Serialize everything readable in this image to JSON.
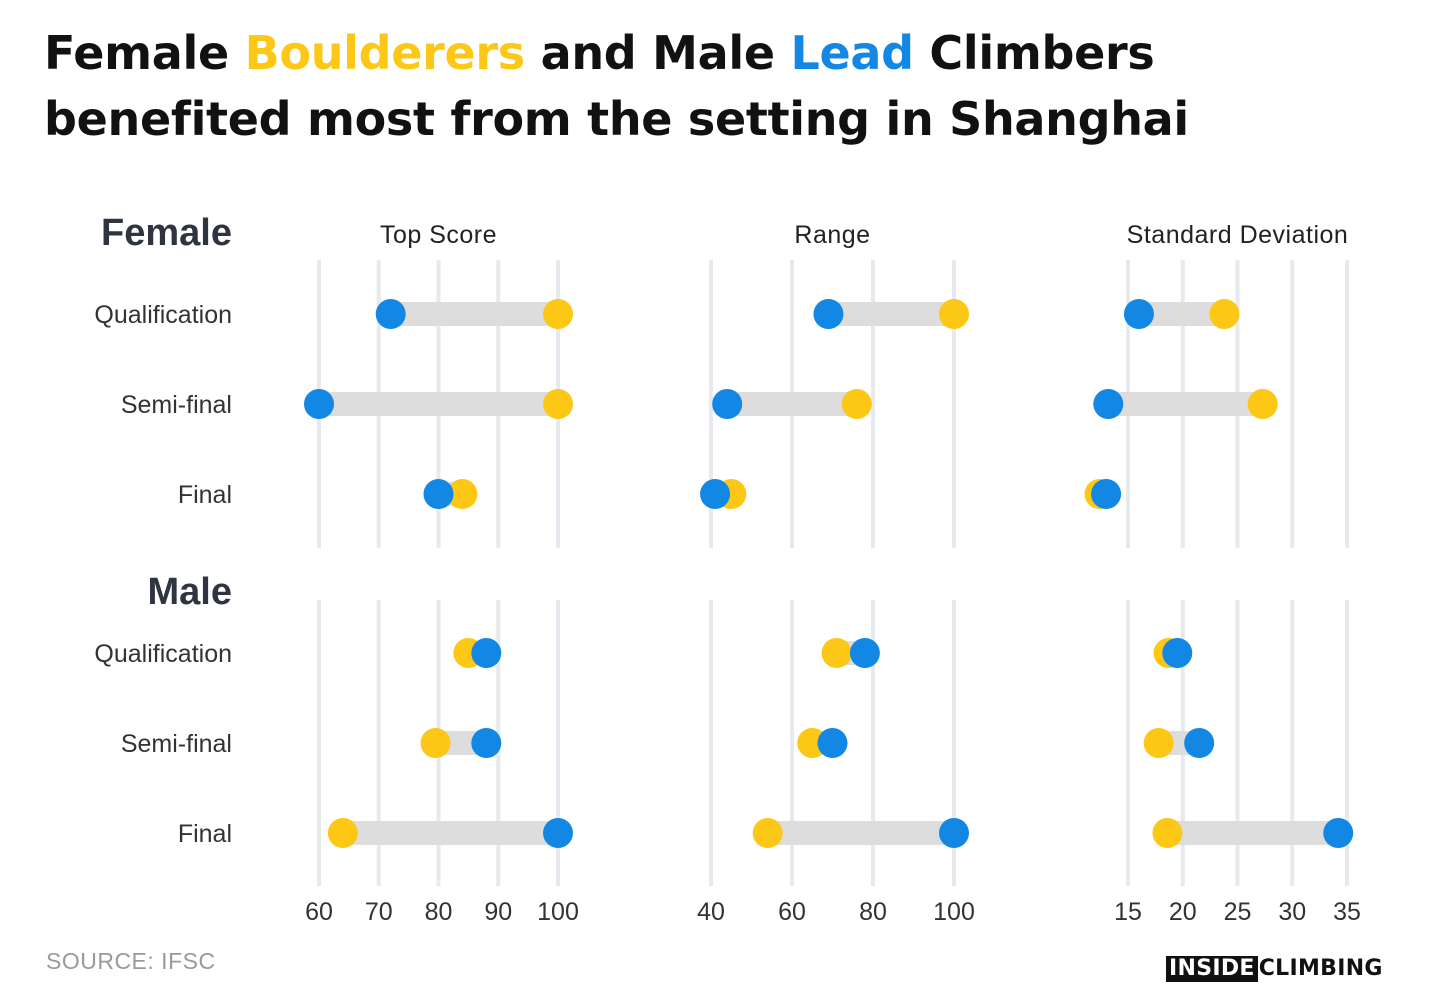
{
  "title": {
    "part1": "Female ",
    "highlight1": "Boulderers",
    "part2": " and Male ",
    "highlight2": "Lead",
    "part3": " Climbers",
    "line2": "benefited most from the setting in Shanghai"
  },
  "colors": {
    "boulder": "#FDC716",
    "lead": "#1287E3",
    "connector": "#DDDDDD",
    "grid": "#E6E9EE"
  },
  "source": "SOURCE: IFSC",
  "logo": {
    "inverted": "INSIDE",
    "plain": "CLIMBING"
  },
  "chart_data": {
    "type": "dumbbell",
    "series": [
      {
        "name": "Boulderers",
        "key": "boulder"
      },
      {
        "name": "Lead",
        "key": "lead"
      }
    ],
    "rounds": [
      "Qualification",
      "Semi-final",
      "Final"
    ],
    "groups": [
      {
        "label": "Female"
      },
      {
        "label": "Male"
      }
    ],
    "panels": [
      {
        "title": "Top Score",
        "xlim": [
          60,
          100
        ],
        "ticks": [
          60,
          70,
          80,
          90,
          100
        ],
        "data": {
          "Female": [
            {
              "round": "Qualification",
              "boulder": 100,
              "lead": 72
            },
            {
              "round": "Semi-final",
              "boulder": 100,
              "lead": 60
            },
            {
              "round": "Final",
              "boulder": 84,
              "lead": 80
            }
          ],
          "Male": [
            {
              "round": "Qualification",
              "boulder": 85,
              "lead": 88
            },
            {
              "round": "Semi-final",
              "boulder": 79.5,
              "lead": 88
            },
            {
              "round": "Final",
              "boulder": 64,
              "lead": 100
            }
          ]
        }
      },
      {
        "title": "Range",
        "xlim": [
          40,
          100
        ],
        "ticks": [
          40,
          60,
          80,
          100
        ],
        "data": {
          "Female": [
            {
              "round": "Qualification",
              "boulder": 100,
              "lead": 69
            },
            {
              "round": "Semi-final",
              "boulder": 76,
              "lead": 44
            },
            {
              "round": "Final",
              "boulder": 45,
              "lead": 41
            }
          ],
          "Male": [
            {
              "round": "Qualification",
              "boulder": 71,
              "lead": 78
            },
            {
              "round": "Semi-final",
              "boulder": 65,
              "lead": 70
            },
            {
              "round": "Final",
              "boulder": 54,
              "lead": 100
            }
          ]
        }
      },
      {
        "title": "Standard Deviation",
        "xlim": [
          15,
          35
        ],
        "ticks": [
          15,
          20,
          25,
          30,
          35
        ],
        "data": {
          "Female": [
            {
              "round": "Qualification",
              "boulder": 23.8,
              "lead": 16
            },
            {
              "round": "Semi-final",
              "boulder": 27.3,
              "lead": 13.2
            },
            {
              "round": "Final",
              "boulder": 12.4,
              "lead": 13
            }
          ],
          "Male": [
            {
              "round": "Qualification",
              "boulder": 18.7,
              "lead": 19.5
            },
            {
              "round": "Semi-final",
              "boulder": 17.8,
              "lead": 21.5
            },
            {
              "round": "Final",
              "boulder": 18.6,
              "lead": 34.2
            }
          ]
        }
      }
    ]
  }
}
